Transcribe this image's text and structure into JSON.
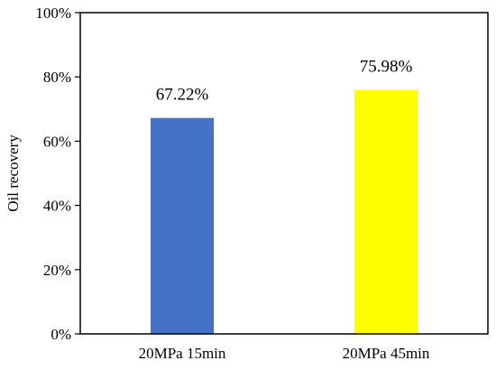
{
  "chart_data": {
    "type": "bar",
    "categories": [
      "20MPa 15min",
      "20MPa 45min"
    ],
    "values": [
      67.22,
      75.98
    ],
    "data_labels": [
      "67.22%",
      "75.98%"
    ],
    "title": "",
    "xlabel": "",
    "ylabel": "Oil recovery",
    "ylim": [
      0,
      100
    ],
    "yticks": [
      0,
      20,
      40,
      60,
      80,
      100
    ],
    "ytick_labels": [
      "0%",
      "20%",
      "40%",
      "60%",
      "80%",
      "100%"
    ],
    "grid": false,
    "legend": "none",
    "colors": [
      "#4472C4",
      "#FFFF00"
    ]
  }
}
